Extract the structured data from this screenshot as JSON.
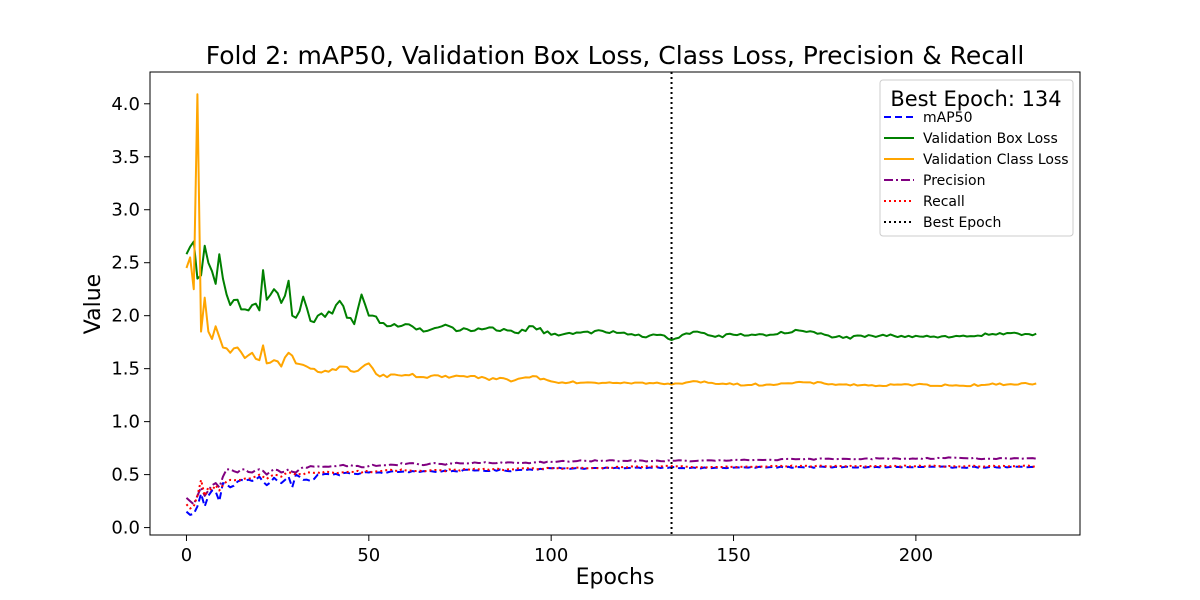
{
  "chart_data": {
    "type": "line",
    "title": "Fold 2: mAP50, Validation Box Loss, Class Loss, Precision & Recall",
    "xlabel": "Epochs",
    "ylabel": "Value",
    "xlim": [
      -10,
      245
    ],
    "ylim": [
      -0.07,
      4.3
    ],
    "xticks": [
      0,
      50,
      100,
      150,
      200
    ],
    "yticks": [
      0.0,
      0.5,
      1.0,
      1.5,
      2.0,
      2.5,
      3.0,
      3.5,
      4.0
    ],
    "ytick_labels": [
      "0.0",
      "0.5",
      "1.0",
      "1.5",
      "2.0",
      "2.5",
      "3.0",
      "3.5",
      "4.0"
    ],
    "xtick_labels": [
      "0",
      "50",
      "100",
      "150",
      "200"
    ],
    "grid": false,
    "legend_title": "Best Epoch: 134",
    "legend_position": "top-right",
    "best_epoch": 133,
    "series": [
      {
        "name": "mAP50",
        "color": "#0000ff",
        "style": "dashed",
        "keypoints": [
          [
            0,
            0.15
          ],
          [
            1,
            0.12
          ],
          [
            2,
            0.13
          ],
          [
            3,
            0.2
          ],
          [
            4,
            0.32
          ],
          [
            5,
            0.2
          ],
          [
            6,
            0.3
          ],
          [
            7,
            0.35
          ],
          [
            8,
            0.34
          ],
          [
            9,
            0.25
          ],
          [
            10,
            0.42
          ],
          [
            12,
            0.38
          ],
          [
            15,
            0.45
          ],
          [
            18,
            0.44
          ],
          [
            20,
            0.48
          ],
          [
            22,
            0.4
          ],
          [
            24,
            0.47
          ],
          [
            26,
            0.42
          ],
          [
            28,
            0.48
          ],
          [
            29,
            0.38
          ],
          [
            30,
            0.5
          ],
          [
            32,
            0.45
          ],
          [
            34,
            0.44
          ],
          [
            36,
            0.5
          ],
          [
            40,
            0.5
          ],
          [
            45,
            0.51
          ],
          [
            50,
            0.52
          ],
          [
            55,
            0.52
          ],
          [
            60,
            0.53
          ],
          [
            70,
            0.53
          ],
          [
            80,
            0.54
          ],
          [
            90,
            0.54
          ],
          [
            100,
            0.56
          ],
          [
            110,
            0.56
          ],
          [
            120,
            0.56
          ],
          [
            133,
            0.57
          ],
          [
            140,
            0.56
          ],
          [
            160,
            0.57
          ],
          [
            180,
            0.57
          ],
          [
            200,
            0.57
          ],
          [
            220,
            0.57
          ],
          [
            233,
            0.57
          ]
        ],
        "noise": 0.015,
        "noise_decay_to": 0.006
      },
      {
        "name": "Validation Box Loss",
        "color": "#008000",
        "style": "solid",
        "keypoints": [
          [
            0,
            2.58
          ],
          [
            1,
            2.65
          ],
          [
            2,
            2.7
          ],
          [
            3,
            2.35
          ],
          [
            4,
            2.38
          ],
          [
            5,
            2.66
          ],
          [
            6,
            2.5
          ],
          [
            7,
            2.42
          ],
          [
            8,
            2.3
          ],
          [
            9,
            2.58
          ],
          [
            10,
            2.35
          ],
          [
            11,
            2.2
          ],
          [
            12,
            2.1
          ],
          [
            14,
            2.15
          ],
          [
            16,
            2.06
          ],
          [
            18,
            2.1
          ],
          [
            20,
            2.05
          ],
          [
            21,
            2.43
          ],
          [
            22,
            2.15
          ],
          [
            24,
            2.25
          ],
          [
            26,
            2.12
          ],
          [
            28,
            2.33
          ],
          [
            29,
            2.0
          ],
          [
            30,
            1.98
          ],
          [
            32,
            2.18
          ],
          [
            34,
            1.95
          ],
          [
            36,
            2.0
          ],
          [
            40,
            2.02
          ],
          [
            42,
            2.14
          ],
          [
            44,
            1.98
          ],
          [
            46,
            1.92
          ],
          [
            48,
            2.2
          ],
          [
            50,
            2.0
          ],
          [
            55,
            1.9
          ],
          [
            60,
            1.92
          ],
          [
            65,
            1.85
          ],
          [
            70,
            1.9
          ],
          [
            75,
            1.86
          ],
          [
            80,
            1.88
          ],
          [
            85,
            1.86
          ],
          [
            90,
            1.84
          ],
          [
            95,
            1.9
          ],
          [
            100,
            1.82
          ],
          [
            110,
            1.85
          ],
          [
            120,
            1.84
          ],
          [
            125,
            1.8
          ],
          [
            130,
            1.82
          ],
          [
            133,
            1.77
          ],
          [
            136,
            1.82
          ],
          [
            140,
            1.85
          ],
          [
            145,
            1.8
          ],
          [
            150,
            1.82
          ],
          [
            160,
            1.82
          ],
          [
            168,
            1.86
          ],
          [
            175,
            1.82
          ],
          [
            180,
            1.79
          ],
          [
            190,
            1.81
          ],
          [
            200,
            1.81
          ],
          [
            210,
            1.8
          ],
          [
            220,
            1.82
          ],
          [
            233,
            1.83
          ]
        ],
        "noise": 0.05,
        "noise_decay_to": 0.015
      },
      {
        "name": "Validation Class Loss",
        "color": "#ffa500",
        "style": "solid",
        "keypoints": [
          [
            0,
            2.45
          ],
          [
            1,
            2.55
          ],
          [
            2,
            2.25
          ],
          [
            3,
            4.09
          ],
          [
            4,
            1.85
          ],
          [
            5,
            2.17
          ],
          [
            6,
            1.85
          ],
          [
            7,
            1.78
          ],
          [
            8,
            1.9
          ],
          [
            9,
            1.8
          ],
          [
            10,
            1.7
          ],
          [
            12,
            1.65
          ],
          [
            14,
            1.7
          ],
          [
            16,
            1.6
          ],
          [
            18,
            1.65
          ],
          [
            20,
            1.58
          ],
          [
            21,
            1.72
          ],
          [
            22,
            1.55
          ],
          [
            24,
            1.58
          ],
          [
            26,
            1.52
          ],
          [
            28,
            1.65
          ],
          [
            30,
            1.55
          ],
          [
            34,
            1.5
          ],
          [
            38,
            1.48
          ],
          [
            42,
            1.52
          ],
          [
            46,
            1.47
          ],
          [
            50,
            1.55
          ],
          [
            52,
            1.45
          ],
          [
            55,
            1.42
          ],
          [
            60,
            1.44
          ],
          [
            65,
            1.42
          ],
          [
            70,
            1.42
          ],
          [
            75,
            1.43
          ],
          [
            80,
            1.41
          ],
          [
            85,
            1.4
          ],
          [
            90,
            1.39
          ],
          [
            95,
            1.43
          ],
          [
            100,
            1.38
          ],
          [
            110,
            1.37
          ],
          [
            120,
            1.37
          ],
          [
            130,
            1.36
          ],
          [
            133,
            1.35
          ],
          [
            140,
            1.38
          ],
          [
            150,
            1.35
          ],
          [
            160,
            1.35
          ],
          [
            170,
            1.37
          ],
          [
            180,
            1.35
          ],
          [
            190,
            1.34
          ],
          [
            200,
            1.35
          ],
          [
            210,
            1.34
          ],
          [
            220,
            1.35
          ],
          [
            233,
            1.36
          ]
        ],
        "noise": 0.03,
        "noise_decay_to": 0.01
      },
      {
        "name": "Precision",
        "color": "#800080",
        "style": "dashdot",
        "keypoints": [
          [
            0,
            0.28
          ],
          [
            1,
            0.25
          ],
          [
            2,
            0.22
          ],
          [
            3,
            0.3
          ],
          [
            4,
            0.38
          ],
          [
            5,
            0.3
          ],
          [
            6,
            0.35
          ],
          [
            7,
            0.4
          ],
          [
            8,
            0.42
          ],
          [
            9,
            0.38
          ],
          [
            10,
            0.48
          ],
          [
            11,
            0.55
          ],
          [
            14,
            0.52
          ],
          [
            16,
            0.55
          ],
          [
            18,
            0.52
          ],
          [
            20,
            0.55
          ],
          [
            22,
            0.5
          ],
          [
            24,
            0.55
          ],
          [
            26,
            0.52
          ],
          [
            28,
            0.55
          ],
          [
            30,
            0.52
          ],
          [
            32,
            0.57
          ],
          [
            34,
            0.58
          ],
          [
            40,
            0.58
          ],
          [
            50,
            0.58
          ],
          [
            60,
            0.6
          ],
          [
            70,
            0.6
          ],
          [
            80,
            0.61
          ],
          [
            90,
            0.61
          ],
          [
            100,
            0.62
          ],
          [
            110,
            0.63
          ],
          [
            120,
            0.63
          ],
          [
            133,
            0.63
          ],
          [
            140,
            0.63
          ],
          [
            160,
            0.64
          ],
          [
            180,
            0.65
          ],
          [
            200,
            0.65
          ],
          [
            210,
            0.66
          ],
          [
            220,
            0.65
          ],
          [
            233,
            0.65
          ]
        ],
        "noise": 0.015,
        "noise_decay_to": 0.006
      },
      {
        "name": "Recall",
        "color": "#ff0000",
        "style": "dotted",
        "keypoints": [
          [
            0,
            0.22
          ],
          [
            1,
            0.18
          ],
          [
            2,
            0.2
          ],
          [
            3,
            0.3
          ],
          [
            4,
            0.45
          ],
          [
            5,
            0.3
          ],
          [
            6,
            0.38
          ],
          [
            7,
            0.35
          ],
          [
            8,
            0.4
          ],
          [
            9,
            0.35
          ],
          [
            10,
            0.4
          ],
          [
            12,
            0.45
          ],
          [
            15,
            0.45
          ],
          [
            18,
            0.47
          ],
          [
            20,
            0.5
          ],
          [
            22,
            0.46
          ],
          [
            24,
            0.5
          ],
          [
            26,
            0.48
          ],
          [
            28,
            0.52
          ],
          [
            30,
            0.5
          ],
          [
            34,
            0.52
          ],
          [
            40,
            0.52
          ],
          [
            50,
            0.53
          ],
          [
            60,
            0.54
          ],
          [
            70,
            0.54
          ],
          [
            80,
            0.55
          ],
          [
            90,
            0.55
          ],
          [
            100,
            0.56
          ],
          [
            110,
            0.56
          ],
          [
            120,
            0.57
          ],
          [
            133,
            0.58
          ],
          [
            140,
            0.57
          ],
          [
            160,
            0.58
          ],
          [
            180,
            0.58
          ],
          [
            200,
            0.58
          ],
          [
            220,
            0.58
          ],
          [
            233,
            0.58
          ]
        ],
        "noise": 0.015,
        "noise_decay_to": 0.006
      }
    ],
    "legend_entries": [
      {
        "label": "mAP50",
        "color": "#0000ff",
        "style": "dashed"
      },
      {
        "label": "Validation Box Loss",
        "color": "#008000",
        "style": "solid"
      },
      {
        "label": "Validation Class Loss",
        "color": "#ffa500",
        "style": "solid"
      },
      {
        "label": "Precision",
        "color": "#800080",
        "style": "dashdot"
      },
      {
        "label": "Recall",
        "color": "#ff0000",
        "style": "dotted"
      },
      {
        "label": "Best Epoch",
        "color": "#000000",
        "style": "dotted"
      }
    ]
  }
}
